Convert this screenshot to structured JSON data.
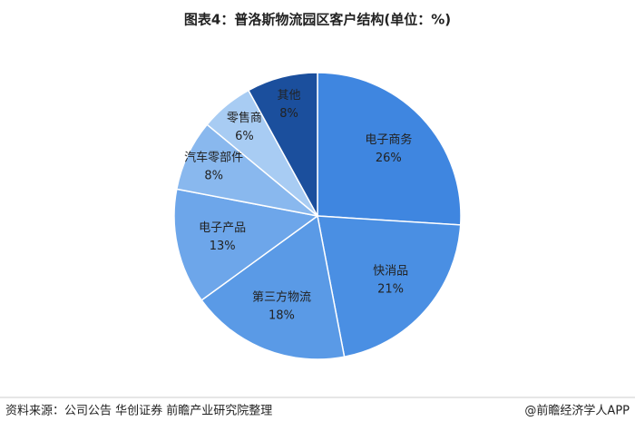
{
  "chart_data": {
    "type": "pie",
    "title": "图表4：普洛斯物流园区客户结构(单位：%)",
    "categories": [
      "电子商务",
      "快消品",
      "第三方物流",
      "电子产品",
      "汽车零部件",
      "零售商",
      "其他"
    ],
    "values": [
      26,
      21,
      18,
      13,
      8,
      6,
      8
    ],
    "value_labels": [
      "26%",
      "21%",
      "18%",
      "13%",
      "8%",
      "6%",
      "8%"
    ],
    "colors": [
      "#3f86e0",
      "#4a8fe3",
      "#5a9ae6",
      "#6da6ea",
      "#89b8ee",
      "#a8ccf3",
      "#1b4f9d"
    ]
  },
  "footer": {
    "source": "资料来源：公司公告 华创证券 前瞻产业研究院整理",
    "brand": "@前瞻经济学人APP"
  }
}
